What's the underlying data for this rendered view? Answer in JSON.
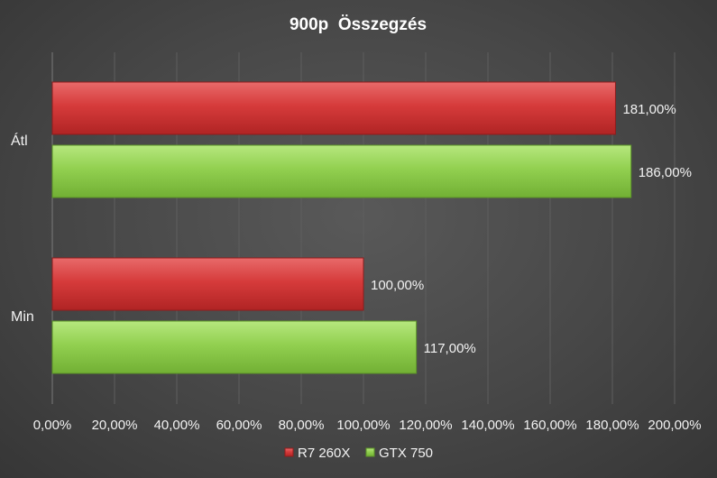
{
  "chart_data": {
    "type": "bar",
    "orientation": "horizontal",
    "title": "900p  Összegzés",
    "categories": [
      "Átl",
      "Min"
    ],
    "series": [
      {
        "name": "R7 260X",
        "values": [
          181,
          100
        ],
        "value_labels": [
          "181,00%",
          "100,00%"
        ],
        "color": "#d63b3b"
      },
      {
        "name": "GTX 750",
        "values": [
          186,
          117
        ],
        "value_labels": [
          "186,00%",
          "117,00%"
        ],
        "color": "#92d050"
      }
    ],
    "xlim": [
      0,
      200
    ],
    "xticks": [
      0,
      20,
      40,
      60,
      80,
      100,
      120,
      140,
      160,
      180,
      200
    ],
    "xtick_labels": [
      "0,00%",
      "20,00%",
      "40,00%",
      "60,00%",
      "80,00%",
      "100,00%",
      "120,00%",
      "140,00%",
      "160,00%",
      "180,00%",
      "200,00%"
    ],
    "xlabel": "",
    "ylabel": "",
    "grid": true,
    "legend": "bottom"
  }
}
